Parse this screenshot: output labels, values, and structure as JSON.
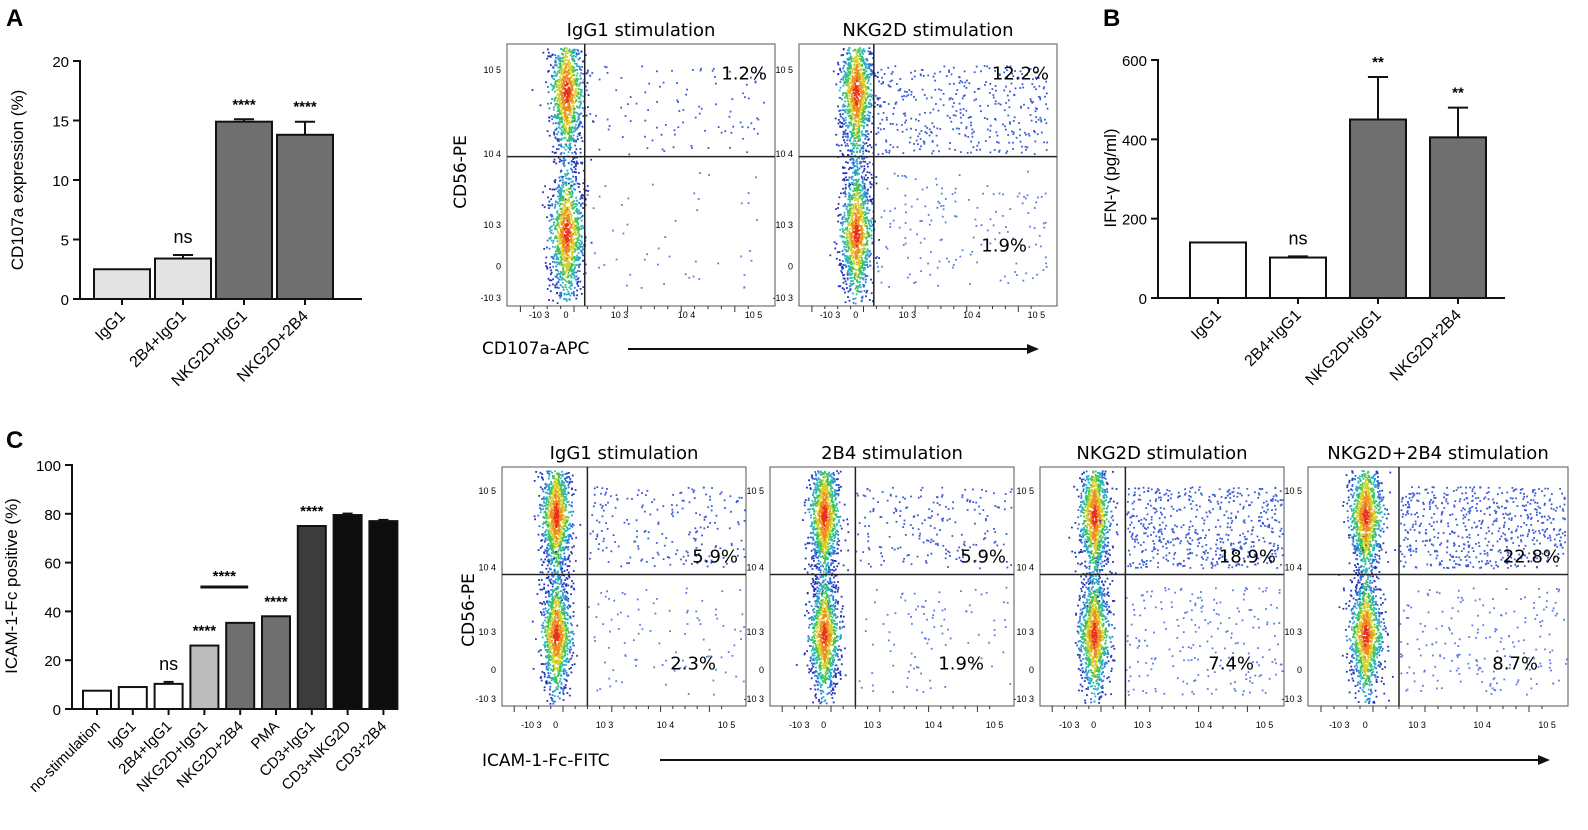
{
  "panel_labels": [
    "A",
    "B",
    "C"
  ],
  "colors": {
    "bar_light": "#e3e3e3",
    "bar_white": "#ffffff",
    "bar_mid": "#bcbcbc",
    "bar_gray": "#6f6f6f",
    "bar_dark": "#3c3c3c",
    "bar_black": "#0d0d0d",
    "axis": "#111111"
  },
  "chart_data": [
    {
      "id": "A-bar",
      "type": "bar",
      "ylabel": "CD107a expression (%)",
      "ylim": [
        0,
        20
      ],
      "yticks": [
        0,
        5,
        10,
        15,
        20
      ],
      "categories": [
        "IgG1",
        "2B4+IgG1",
        "NKG2D+IgG1",
        "NKG2D+2B4"
      ],
      "values": [
        2.5,
        3.4,
        14.9,
        13.8
      ],
      "errors": [
        0,
        0.3,
        0.2,
        1.1
      ],
      "fills": [
        "bar_light",
        "bar_light",
        "bar_gray",
        "bar_gray"
      ],
      "annotations": [
        "",
        "ns",
        "****",
        "****"
      ]
    },
    {
      "id": "B-bar",
      "type": "bar",
      "ylabel": "IFN-γ (pg/ml)",
      "ylim": [
        0,
        600
      ],
      "yticks": [
        0,
        200,
        400,
        600
      ],
      "categories": [
        "IgG1",
        "2B4+IgG1",
        "NKG2D+IgG1",
        "NKG2D+2B4"
      ],
      "values": [
        140,
        102,
        450,
        405
      ],
      "errors": [
        0,
        3,
        107,
        75
      ],
      "fills": [
        "bar_white",
        "bar_white",
        "bar_gray",
        "bar_gray"
      ],
      "annotations": [
        "",
        "ns",
        "**",
        "**"
      ]
    },
    {
      "id": "C-bar",
      "type": "bar",
      "ylabel": "ICAM-1-Fc positive (%)",
      "ylim": [
        0,
        100
      ],
      "yticks": [
        0,
        20,
        40,
        60,
        80,
        100
      ],
      "categories": [
        "no-stimulation",
        "IgG1",
        "2B4+IgG1",
        "NKG2D+IgG1",
        "NKG2D+2B4",
        "PMA",
        "CD3+IgG1",
        "CD3+NKG2D",
        "CD3+2B4"
      ],
      "values": [
        7.5,
        9,
        10.3,
        26,
        35.3,
        38,
        75,
        79.5,
        77
      ],
      "errors": [
        0,
        0,
        0.8,
        0,
        0,
        0,
        0,
        0.6,
        0.5
      ],
      "fills": [
        "bar_white",
        "bar_white",
        "bar_white",
        "bar_mid",
        "bar_gray",
        "bar_gray",
        "bar_dark",
        "bar_black",
        "bar_black"
      ],
      "annotations": [
        "",
        "",
        "ns",
        "****",
        "",
        "****",
        "****",
        "",
        ""
      ],
      "bracket": {
        "from": 3,
        "to": 4,
        "label": "****"
      }
    },
    {
      "id": "A-flow",
      "type": "scatter",
      "xlabel": "CD107a-APC",
      "ylabel": "CD56-PE",
      "xticks": [
        "-10 3",
        "0",
        "10 3",
        "10 4",
        "10 5"
      ],
      "yticks": [
        "10 5",
        "10 4",
        "10 3",
        "0",
        "-10 3"
      ],
      "plots": [
        {
          "title": "IgG1 stimulation",
          "upper_right": "1.2%",
          "lower_right": "",
          "spread": 0.12
        },
        {
          "title": "NKG2D stimulation",
          "upper_right": "12.2%",
          "lower_right": "1.9%",
          "spread": 0.55
        }
      ]
    },
    {
      "id": "C-flow",
      "type": "scatter",
      "xlabel": "ICAM-1-Fc-FITC",
      "ylabel": "CD56-PE",
      "xticks": [
        "-10 3",
        "0",
        "10 3",
        "10 4",
        "10 5"
      ],
      "yticks": [
        "10 5",
        "10 4",
        "10 3",
        "0",
        "-10 3"
      ],
      "plots": [
        {
          "title": "IgG1 stimulation",
          "upper_right": "5.9%",
          "lower_right": "2.3%",
          "spread": 0.3
        },
        {
          "title": "2B4 stimulation",
          "upper_right": "5.9%",
          "lower_right": "1.9%",
          "spread": 0.3
        },
        {
          "title": "NKG2D stimulation",
          "upper_right": "18.9%",
          "lower_right": "7.4%",
          "spread": 0.8
        },
        {
          "title": "NKG2D+2B4 stimulation",
          "upper_right": "22.8%",
          "lower_right": "8.7%",
          "spread": 0.85
        }
      ]
    }
  ]
}
